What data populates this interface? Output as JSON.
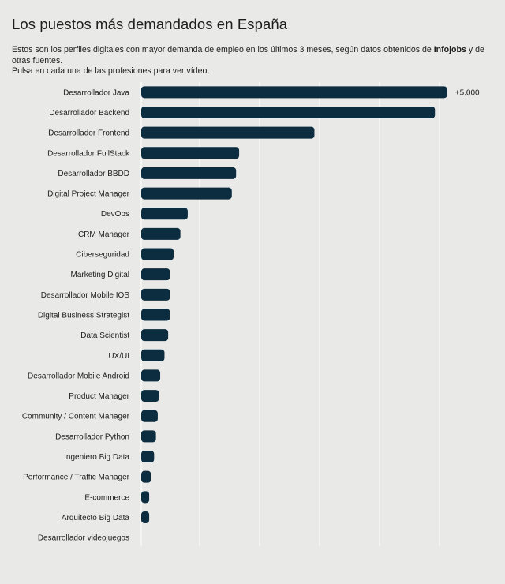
{
  "title": "Los puestos más demandados en España",
  "subtitle": {
    "part1": "Estos son los perfiles digitales con mayor demanda de empleo en los últimos 3 meses, según datos obtenidos de ",
    "brand": "Infojobs",
    "part2": " y de otras fuentes.",
    "line2": "Pulsa en cada una de las profesiones para ver vídeo."
  },
  "colors": {
    "bar": "#0c2d3f",
    "grid": "#ffffff",
    "background": "#e9e9e7"
  },
  "chart_data": {
    "type": "bar",
    "orientation": "horizontal",
    "title": "",
    "xlabel": "",
    "ylabel": "",
    "grid": true,
    "categories": [
      "Desarrollador Java",
      "Desarrollador Backend",
      "Desarrollador Frontend",
      "Desarrollador FullStack",
      "Desarrollador BBDD",
      "Digital Project Manager",
      "DevOps",
      "CRM Manager",
      "Ciberseguridad",
      "Marketing Digital",
      "Desarrollador Mobile IOS",
      "Digital Business Strategist",
      "Data Scientist",
      "UX/UI",
      "Desarrollador Mobile Android",
      "Product Manager",
      "Community / Content Manager",
      "Desarrollador Python",
      "Ingeniero Big Data",
      "Performance / Traffic Manager",
      "E-commerce",
      "Arquitecto Big Data",
      "Desarrollador videojuegos"
    ],
    "values": [
      5000,
      4800,
      2830,
      1600,
      1550,
      1480,
      760,
      640,
      530,
      470,
      470,
      470,
      440,
      380,
      310,
      290,
      270,
      240,
      210,
      160,
      130,
      130,
      0
    ],
    "data_labels": [
      "+5.000",
      "",
      "",
      "",
      "",
      "",
      "",
      "",
      "",
      "",
      "",
      "",
      "",
      "",
      "",
      "",
      "",
      "",
      "",
      "",
      "",
      "",
      ""
    ],
    "xlim": [
      0,
      5300
    ]
  }
}
